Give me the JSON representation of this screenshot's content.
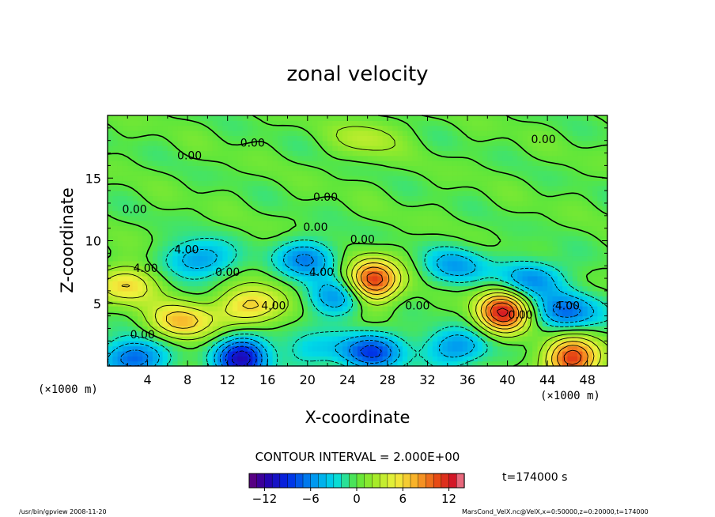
{
  "chart_data": {
    "type": "heatmap",
    "title": "zonal velocity",
    "xlabel": "X-coordinate",
    "ylabel": "Z-coordinate",
    "x_units": "(×1000 m)",
    "y_units": "(×1000 m)",
    "xlim": [
      0,
      50
    ],
    "ylim": [
      0,
      20
    ],
    "x_ticks": [
      "4",
      "8",
      "12",
      "16",
      "20",
      "24",
      "28",
      "32",
      "36",
      "40",
      "44",
      "48"
    ],
    "y_ticks": [
      "5",
      "10",
      "15"
    ],
    "contour_interval_label": "CONTOUR INTERVAL = 2.000E+00",
    "time_label": "t=174000 s",
    "colorbar": {
      "range": [
        -14,
        14
      ],
      "ticks": [
        "−12",
        "−6",
        "0",
        "6",
        "12"
      ]
    },
    "contour_labels": [
      {
        "x": 14.5,
        "y": 17.5,
        "text": "0.00"
      },
      {
        "x": 8.2,
        "y": 16.5,
        "text": "0.00"
      },
      {
        "x": 43.6,
        "y": 17.8,
        "text": "0.00"
      },
      {
        "x": 21.8,
        "y": 13.2,
        "text": "0.00"
      },
      {
        "x": 2.7,
        "y": 12.2,
        "text": "0.00"
      },
      {
        "x": 20.8,
        "y": 10.8,
        "text": "0.00"
      },
      {
        "x": 25.5,
        "y": 9.8,
        "text": "0.00"
      },
      {
        "x": 12,
        "y": 7.2,
        "text": "0.00"
      },
      {
        "x": 31,
        "y": 4.5,
        "text": "0.00"
      },
      {
        "x": 3.5,
        "y": 2.2,
        "text": "0.00"
      },
      {
        "x": 7.9,
        "y": 9.0,
        "text": "4.00"
      },
      {
        "x": 3.8,
        "y": 7.5,
        "text": "4.00"
      },
      {
        "x": 16.6,
        "y": 4.5,
        "text": "4.00"
      },
      {
        "x": 21.4,
        "y": 7.2,
        "text": "4.00"
      },
      {
        "x": 46.0,
        "y": 4.5,
        "text": "4.00"
      },
      {
        "x": 41.3,
        "y": 3.8,
        "text": "0.00"
      }
    ],
    "features": [
      {
        "x": 26.5,
        "y": 6.8,
        "peak": 12
      },
      {
        "x": 39.5,
        "y": 4.3,
        "peak": 12
      },
      {
        "x": 46.5,
        "y": 0.6,
        "peak": 12
      },
      {
        "x": 14.5,
        "y": 4.8,
        "peak": 7
      },
      {
        "x": 7.5,
        "y": 3.6,
        "peak": 7
      },
      {
        "x": 2.0,
        "y": 6.5,
        "peak": 6
      },
      {
        "x": 26.0,
        "y": 18.2,
        "peak": 3
      },
      {
        "x": 9.0,
        "y": 8.5,
        "peak": -6
      },
      {
        "x": 20.0,
        "y": 8.6,
        "peak": -6
      },
      {
        "x": 35.0,
        "y": 8.0,
        "peak": -5
      },
      {
        "x": 46.0,
        "y": 4.3,
        "peak": -7
      },
      {
        "x": 42.5,
        "y": 7.0,
        "peak": -6
      },
      {
        "x": 13.5,
        "y": 0.7,
        "peak": -11
      },
      {
        "x": 2.5,
        "y": 0.6,
        "peak": -8
      },
      {
        "x": 26.5,
        "y": 1.2,
        "peak": -8
      },
      {
        "x": 35.0,
        "y": 1.5,
        "peak": -6
      },
      {
        "x": 20.5,
        "y": 1.2,
        "peak": -3
      },
      {
        "x": 23.0,
        "y": 5.5,
        "peak": -6
      }
    ]
  },
  "footer": {
    "left": "/usr/bin/gpview  2008-11-20",
    "right": "MarsCond_VelX.nc@VelX,x=0:50000,z=0:20000,t=174000"
  }
}
